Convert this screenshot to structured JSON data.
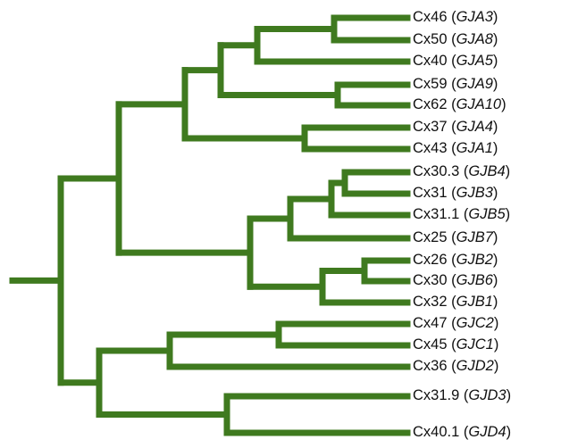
{
  "tree": {
    "branch_color": "#3f7a1f",
    "leaves": [
      {
        "protein": "Cx46",
        "gene": "GJA3"
      },
      {
        "protein": "Cx50",
        "gene": "GJA8"
      },
      {
        "protein": "Cx40",
        "gene": "GJA5"
      },
      {
        "protein": "Cx59",
        "gene": "GJA9"
      },
      {
        "protein": "Cx62",
        "gene": "GJA10"
      },
      {
        "protein": "Cx37",
        "gene": "GJA4"
      },
      {
        "protein": "Cx43",
        "gene": "GJA1"
      },
      {
        "protein": "Cx30.3",
        "gene": "GJB4"
      },
      {
        "protein": "Cx31",
        "gene": "GJB3"
      },
      {
        "protein": "Cx31.1",
        "gene": "GJB5"
      },
      {
        "protein": "Cx25",
        "gene": "GJB7"
      },
      {
        "protein": "Cx26",
        "gene": "GJB2"
      },
      {
        "protein": "Cx30",
        "gene": "GJB6"
      },
      {
        "protein": "Cx32",
        "gene": "GJB1"
      },
      {
        "protein": "Cx47",
        "gene": "GJC2"
      },
      {
        "protein": "Cx45",
        "gene": "GJC1"
      },
      {
        "protein": "Cx36",
        "gene": "GJD2"
      },
      {
        "protein": "Cx31.9",
        "gene": "GJD3"
      },
      {
        "protein": "Cx40.1",
        "gene": "GJD4"
      }
    ]
  }
}
